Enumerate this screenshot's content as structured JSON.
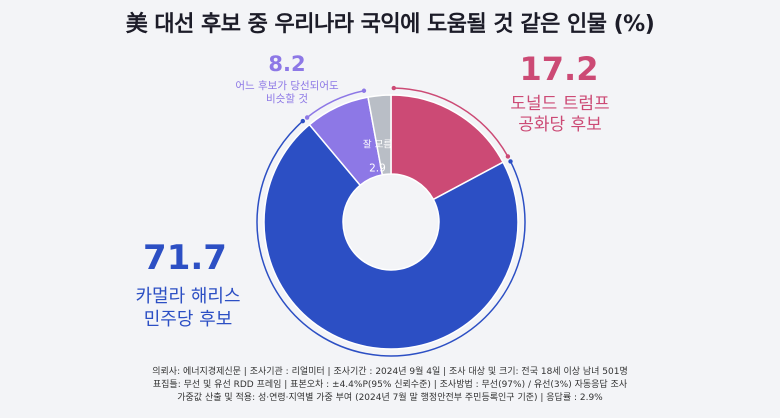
{
  "title": "美 대선 후보 중 우리나라 국익에 도움될 것 같은 인물 (%)",
  "chart_data": {
    "type": "pie",
    "title": "美 대선 후보 중 우리나라 국익에 도움될 것 같은 인물 (%)",
    "categories": [
      "도널드 트럼프 공화당 후보",
      "카멀라 해리스 민주당 후보",
      "어느 후보가 당선되어도 비슷할 것",
      "잘 모름"
    ],
    "values": [
      17.2,
      71.7,
      8.2,
      2.9
    ],
    "colors": [
      "#cc4a75",
      "#2c4fc4",
      "#8d78e6",
      "#b9bec6"
    ],
    "start_angle_deg": 0,
    "direction": "clockwise",
    "hole": "donut"
  },
  "labels": {
    "trump": {
      "value": "17.2",
      "line1": "도널드 트럼프",
      "line2": "공화당 후보"
    },
    "harris": {
      "value": "71.7",
      "line1": "카멀라 해리스",
      "line2": "민주당 후보"
    },
    "anyone": {
      "value": "8.2",
      "line1": "어느 후보가 당선되어도",
      "line2": "비슷할 것"
    },
    "unknown": {
      "label": "잘 모름",
      "value": "2.9"
    }
  },
  "footer": {
    "line1": "의뢰사: 에너지경제신문 | 조사기관 : 리얼미터  |  조사기간 : 2024년 9월 4일 | 조사 대상 및 크기: 전국 18세 이상 남녀 501명",
    "line2": "표집틀: 무선 및 유선 RDD 프레임 | 표본오차 : ±4.4%P(95% 신뢰수준) | 조사방법 : 무선(97%) / 유선(3%) 자동응답 조사",
    "line3": "가중값 산출 및 적용: 성·연령·지역별 가중 부여 (2024년 7월 말 행정안전부 주민등록인구 기준) | 응답률 : 2.9%"
  }
}
